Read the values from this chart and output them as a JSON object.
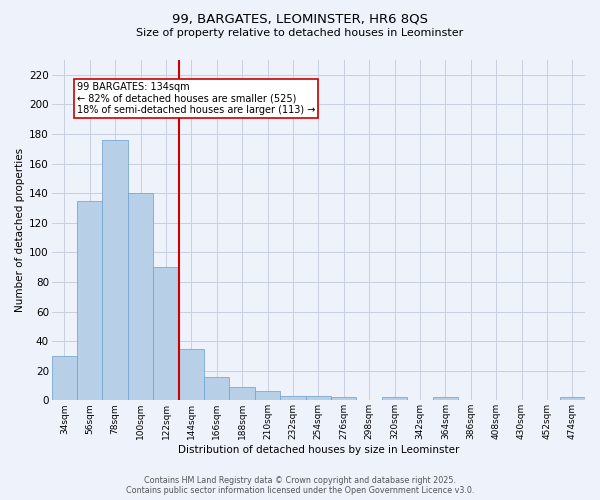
{
  "title_line1": "99, BARGATES, LEOMINSTER, HR6 8QS",
  "title_line2": "Size of property relative to detached houses in Leominster",
  "xlabel": "Distribution of detached houses by size in Leominster",
  "ylabel": "Number of detached properties",
  "categories": [
    "34sqm",
    "56sqm",
    "78sqm",
    "100sqm",
    "122sqm",
    "144sqm",
    "166sqm",
    "188sqm",
    "210sqm",
    "232sqm",
    "254sqm",
    "276sqm",
    "298sqm",
    "320sqm",
    "342sqm",
    "364sqm",
    "386sqm",
    "408sqm",
    "430sqm",
    "452sqm",
    "474sqm"
  ],
  "values": [
    30,
    135,
    176,
    140,
    90,
    35,
    16,
    9,
    6,
    3,
    3,
    2,
    0,
    2,
    0,
    2,
    0,
    0,
    0,
    0,
    2
  ],
  "bar_color": "#b8cfe8",
  "bar_edge_color": "#6a9fd0",
  "vline_color": "#cc0000",
  "annotation_title": "99 BARGATES: 134sqm",
  "annotation_line2": "← 82% of detached houses are smaller (525)",
  "annotation_line3": "18% of semi-detached houses are larger (113) →",
  "annotation_box_color": "#cc0000",
  "annotation_bg": "#ffffff",
  "ylim": [
    0,
    230
  ],
  "yticks": [
    0,
    20,
    40,
    60,
    80,
    100,
    120,
    140,
    160,
    180,
    200,
    220
  ],
  "footer_line1": "Contains HM Land Registry data © Crown copyright and database right 2025.",
  "footer_line2": "Contains public sector information licensed under the Open Government Licence v3.0.",
  "background_color": "#eef2fb",
  "grid_color": "#c8d0e0"
}
